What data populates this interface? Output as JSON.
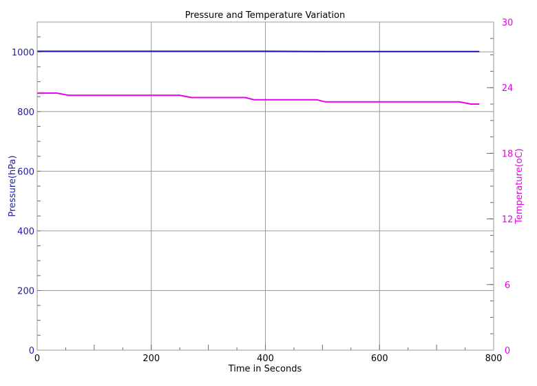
{
  "chart_data": {
    "type": "line",
    "title": "Pressure and Temperature Variation",
    "xlabel": "Time in Seconds",
    "ylabel_left": "Pressure(hPa)",
    "ylabel_right": "Temperature(oC)",
    "xlim": [
      0,
      800
    ],
    "ylim_left": [
      0,
      1100
    ],
    "ylim_right": [
      0,
      30
    ],
    "x_ticks": [
      0,
      200,
      400,
      600,
      800
    ],
    "y_ticks_left": [
      0,
      200,
      400,
      600,
      800,
      1000
    ],
    "y_ticks_right": [
      0,
      6,
      12,
      18,
      24,
      30
    ],
    "grid": true,
    "colors": {
      "pressure": "#1a1ab0",
      "temperature": "#e600e6",
      "left_axis_text": "#1a1ab0",
      "right_axis_text": "#e600e6",
      "grid": "#999999"
    },
    "series": [
      {
        "axis": "left",
        "x": [
          0,
          100,
          200,
          300,
          400,
          500,
          600,
          700,
          775
        ],
        "values": [
          1002,
          1002,
          1002,
          1002,
          1002,
          1001,
          1001,
          1001,
          1001
        ]
      },
      {
        "axis": "right",
        "x": [
          0,
          35,
          55,
          100,
          150,
          200,
          250,
          270,
          300,
          350,
          365,
          380,
          400,
          450,
          490,
          505,
          550,
          600,
          650,
          700,
          740,
          760,
          775
        ],
        "values": [
          23.5,
          23.5,
          23.3,
          23.3,
          23.3,
          23.3,
          23.3,
          23.1,
          23.1,
          23.1,
          23.1,
          22.9,
          22.9,
          22.9,
          22.9,
          22.7,
          22.7,
          22.7,
          22.7,
          22.7,
          22.7,
          22.5,
          22.5
        ]
      }
    ]
  }
}
